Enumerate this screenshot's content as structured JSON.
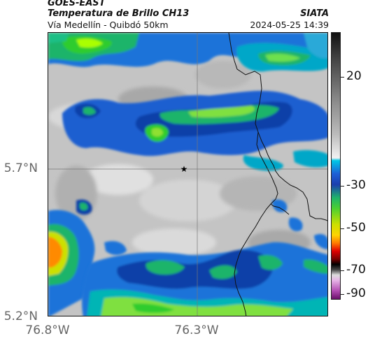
{
  "header": {
    "title": "GOES-EAST",
    "subtitle": "Temperatura de Brillo CH13",
    "location": "Vía Medellín - Quibdó 50km",
    "org": "SIATA",
    "datetime": "2024-05-25 14:39"
  },
  "axes": {
    "lat_labels": [
      "5.7°N",
      "5.2°N"
    ],
    "lon_labels": [
      "76.8°W",
      "76.3°W"
    ]
  },
  "colorbar": {
    "ticks": [
      "20",
      "-30",
      "-50",
      "-70",
      "-90"
    ],
    "values": [
      20,
      -30,
      -50,
      -70,
      -90
    ],
    "range": [
      40,
      -95
    ]
  },
  "marker": {
    "symbol": "★",
    "name": "site-marker"
  }
}
